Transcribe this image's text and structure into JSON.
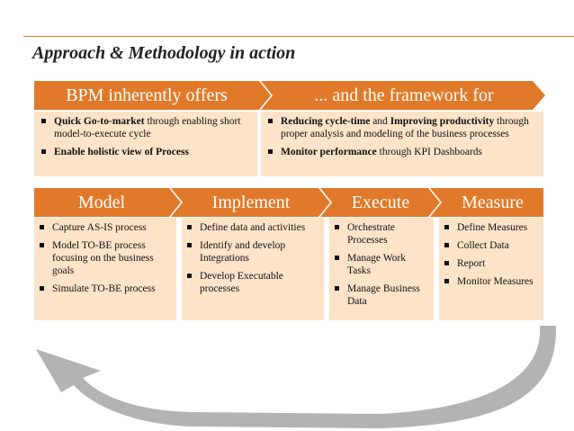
{
  "title": "Approach & Methodology in action",
  "colors": {
    "accent": "#e07a2a",
    "box_fill": "#fde3c8",
    "arrow_gray": "#b3b3b3"
  },
  "top": {
    "left_header": "BPM inherently offers",
    "right_header": "... and the framework for",
    "left_items": [
      {
        "bold": "Quick Go-to-market",
        "rest": " through enabling short model-to-execute cycle"
      },
      {
        "bold": "Enable holistic view of Process",
        "rest": ""
      }
    ],
    "right_items": [
      {
        "bold": "Reducing cycle-time",
        "mid": " and ",
        "bold2": "Improving productivity",
        "rest": " through proper analysis and modeling of the business processes"
      },
      {
        "bold": "Monitor performance",
        "rest": " through KPI Dashboards"
      }
    ]
  },
  "phases": [
    {
      "label": "Model",
      "items": [
        "Capture AS-IS process",
        "Model TO-BE process focusing on the business goals",
        "Simulate TO-BE process"
      ]
    },
    {
      "label": "Implement",
      "items": [
        "Define data and activities",
        "Identify and develop Integrations",
        "Develop Executable processes"
      ]
    },
    {
      "label": "Execute",
      "items": [
        "Orchestrate Processes",
        "Manage Work Tasks",
        "Manage Business Data"
      ]
    },
    {
      "label": "Measure",
      "items": [
        "Define Measures",
        "Collect Data",
        "Report",
        "Monitor Measures"
      ]
    }
  ]
}
